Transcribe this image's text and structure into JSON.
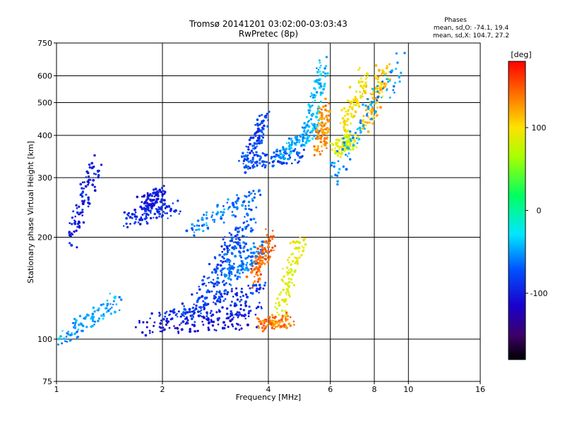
{
  "chart_data": {
    "type": "scatter",
    "title": "Tromsø 20141201 03:02:00-03:03:43",
    "subtitle": "RwPretec (8p)",
    "xlabel": "Frequency [MHz]",
    "ylabel": "Stationary phase Virtual Height [km]",
    "x_scale": "log",
    "y_scale": "log",
    "xlim": [
      1,
      16
    ],
    "ylim": [
      75,
      750
    ],
    "x_ticks": [
      1,
      2,
      4,
      6,
      8,
      10,
      16
    ],
    "x_tick_labels": [
      "1",
      "2",
      "4",
      "6",
      "8",
      "10",
      "16"
    ],
    "y_ticks": [
      75,
      100,
      200,
      300,
      400,
      500,
      600,
      750
    ],
    "y_tick_labels": [
      "75",
      "100",
      "200",
      "300",
      "400",
      "500",
      "600",
      "750"
    ],
    "grid": true,
    "stats": {
      "title": "Phases",
      "o_line": "mean, sd,O: -74.1, 19.4",
      "x_line": "mean, sd,X: 104.7, 27.2"
    },
    "colorbar": {
      "label": "[deg]",
      "min": -180,
      "max": 180,
      "ticks": [
        100,
        0,
        -100
      ],
      "tick_labels": [
        "100",
        "0",
        "-100"
      ],
      "colormap": "rainbow"
    },
    "series": [
      {
        "segments": [
          {
            "x0": 1.75,
            "x1": 3.6,
            "y0": 108,
            "y1": 113,
            "phase": -110
          },
          {
            "x0": 1.9,
            "x1": 3.8,
            "y0": 115,
            "y1": 124,
            "phase": -90
          },
          {
            "x0": 2.2,
            "x1": 3.9,
            "y0": 120,
            "y1": 142,
            "phase": -85
          },
          {
            "x0": 2.5,
            "x1": 3.3,
            "y0": 130,
            "y1": 210,
            "phase": -80
          },
          {
            "x0": 2.9,
            "x1": 3.6,
            "y0": 140,
            "y1": 240,
            "phase": -70
          },
          {
            "x0": 3.1,
            "x1": 3.9,
            "y0": 150,
            "y1": 190,
            "phase": -60
          },
          {
            "x0": 3.8,
            "x1": 4.6,
            "y0": 110,
            "y1": 114,
            "phase": 140
          },
          {
            "x0": 4.3,
            "x1": 4.95,
            "y0": 120,
            "y1": 200,
            "phase": 90
          },
          {
            "x0": 3.6,
            "x1": 4.1,
            "y0": 150,
            "y1": 200,
            "phase": 145
          },
          {
            "x0": 1.6,
            "x1": 2.2,
            "y0": 225,
            "y1": 245,
            "phase": -90
          },
          {
            "x0": 1.75,
            "x1": 2.0,
            "y0": 250,
            "y1": 270,
            "phase": -100
          },
          {
            "x0": 2.4,
            "x1": 3.7,
            "y0": 210,
            "y1": 270,
            "phase": -60
          },
          {
            "x0": 3.4,
            "x1": 5.0,
            "y0": 330,
            "y1": 350,
            "phase": -75
          },
          {
            "x0": 3.5,
            "x1": 3.9,
            "y0": 330,
            "y1": 460,
            "phase": -80
          },
          {
            "x0": 4.3,
            "x1": 5.5,
            "y0": 350,
            "y1": 420,
            "phase": -45
          },
          {
            "x0": 5.2,
            "x1": 5.75,
            "y0": 400,
            "y1": 650,
            "phase": -40
          },
          {
            "x0": 5.6,
            "x1": 5.8,
            "y0": 360,
            "y1": 480,
            "phase": 130
          },
          {
            "x0": 6.2,
            "x1": 7.0,
            "y0": 360,
            "y1": 390,
            "phase": 85
          },
          {
            "x0": 6.6,
            "x1": 7.5,
            "y0": 420,
            "y1": 600,
            "phase": 100
          },
          {
            "x0": 7.6,
            "x1": 8.6,
            "y0": 420,
            "y1": 640,
            "phase": 110
          },
          {
            "x0": 6.0,
            "x1": 9.5,
            "y0": 300,
            "y1": 650,
            "phase": -50
          },
          {
            "x0": 1.03,
            "x1": 1.5,
            "y0": 100,
            "y1": 130,
            "phase": -50
          },
          {
            "x0": 1.1,
            "x1": 1.3,
            "y0": 200,
            "y1": 330,
            "phase": -100
          }
        ]
      }
    ]
  }
}
